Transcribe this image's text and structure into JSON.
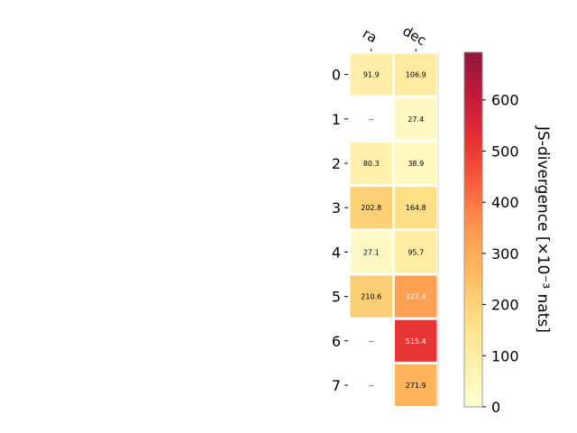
{
  "chart_data": {
    "type": "heatmap",
    "columns": [
      "ra",
      "dec"
    ],
    "rows": [
      "0",
      "1",
      "2",
      "3",
      "4",
      "5",
      "6",
      "7"
    ],
    "values": [
      [
        91.9,
        106.9
      ],
      [
        null,
        27.4
      ],
      [
        80.3,
        38.9
      ],
      [
        202.8,
        164.8
      ],
      [
        27.1,
        95.7
      ],
      [
        210.6,
        327.4
      ],
      [
        null,
        515.4
      ],
      [
        null,
        271.9
      ]
    ],
    "cell_labels": [
      [
        "91.9",
        "106.9"
      ],
      [
        "--",
        "27.4"
      ],
      [
        "80.3",
        "38.9"
      ],
      [
        "202.8",
        "164.8"
      ],
      [
        "27.1",
        "95.7"
      ],
      [
        "210.6",
        "327.4"
      ],
      [
        "--",
        "515.4"
      ],
      [
        "--",
        "271.9"
      ]
    ],
    "colorbar": {
      "label": "JS-divergence [×10⁻³ nats]",
      "min": 0,
      "max": 693,
      "ticks": [
        "0",
        "100",
        "200",
        "300",
        "400",
        "500",
        "600"
      ],
      "colormap": "YlOrRd",
      "alpha": 0.9
    }
  }
}
